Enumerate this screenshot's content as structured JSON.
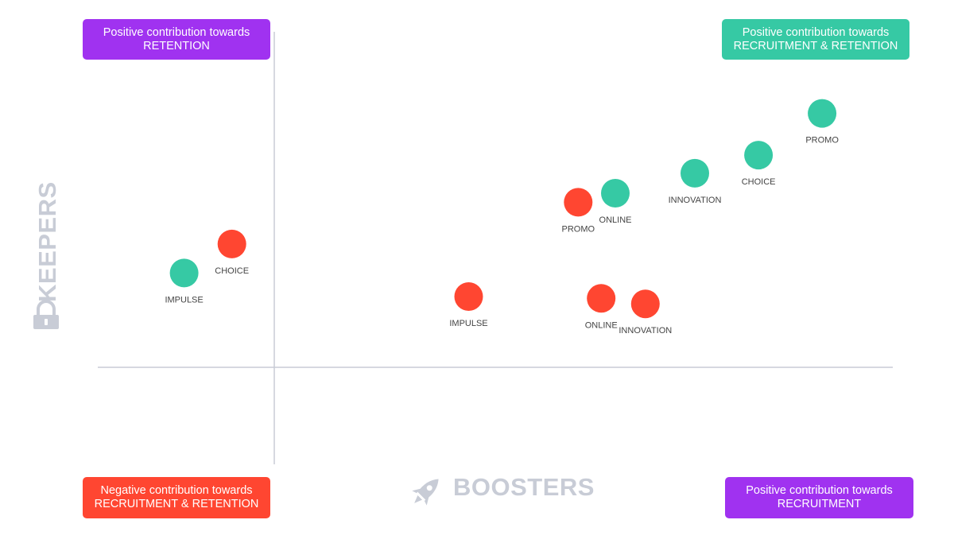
{
  "colors": {
    "purple": "#a032f0",
    "teal": "#36c9a4",
    "red": "#ff4631",
    "axis": "#c8ccd6",
    "axis_title": "#c8ccd6"
  },
  "quadrants": {
    "top_left": {
      "line1": "Positive contribution towards",
      "line2": "RETENTION",
      "color": "purple"
    },
    "top_right": {
      "line1": "Positive contribution towards",
      "line2": "RECRUITMENT & RETENTION",
      "color": "teal"
    },
    "bottom_left": {
      "line1": "Negative contribution towards",
      "line2": "RECRUITMENT & RETENTION",
      "color": "red"
    },
    "bottom_right": {
      "line1": "Positive contribution towards",
      "line2": "RECRUITMENT",
      "color": "purple"
    }
  },
  "icons": {
    "x_axis": "rocket-icon",
    "y_axis": "lock-icon"
  },
  "chart_data": {
    "type": "scatter",
    "xlabel": "BOOSTERS",
    "ylabel": "KEEPERS",
    "grid": false,
    "xlim": [
      -1.0,
      3.5
    ],
    "ylim": [
      -0.55,
      1.85
    ],
    "series": [
      {
        "color": "teal",
        "points": [
          {
            "label": "IMPULSE",
            "x": -0.51,
            "y": 0.52
          },
          {
            "label": "ONLINE",
            "x": 1.93,
            "y": 0.96
          },
          {
            "label": "INNOVATION",
            "x": 2.38,
            "y": 1.07
          },
          {
            "label": "CHOICE",
            "x": 2.74,
            "y": 1.17
          },
          {
            "label": "PROMO",
            "x": 3.1,
            "y": 1.4
          }
        ]
      },
      {
        "color": "red",
        "points": [
          {
            "label": "CHOICE",
            "x": -0.24,
            "y": 0.68
          },
          {
            "label": "IMPULSE",
            "x": 1.1,
            "y": 0.39
          },
          {
            "label": "PROMO",
            "x": 1.72,
            "y": 0.91
          },
          {
            "label": "ONLINE",
            "x": 1.85,
            "y": 0.38
          },
          {
            "label": "INNOVATION",
            "x": 2.1,
            "y": 0.35
          }
        ]
      }
    ]
  }
}
